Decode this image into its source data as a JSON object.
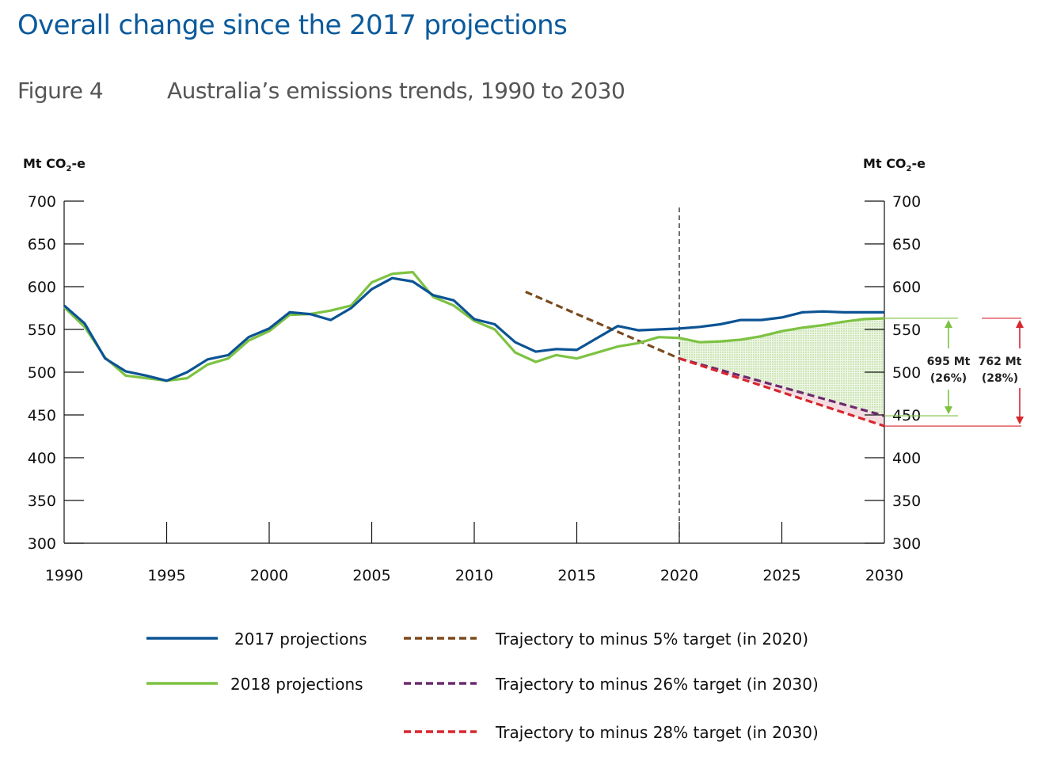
{
  "header": {
    "title": "Overall change since the 2017 projections",
    "figure_label": "Figure 4",
    "figure_title": "Australia’s emissions trends, 1990 to 2030"
  },
  "chart_data": {
    "type": "line",
    "ylabel_left": "Mt CO2-e",
    "ylabel_right": "Mt CO2-e",
    "xlim": [
      1990,
      2030
    ],
    "ylim": [
      300,
      700
    ],
    "x_ticks": [
      1990,
      1995,
      2000,
      2005,
      2010,
      2015,
      2020,
      2025,
      2030
    ],
    "y_ticks": [
      300,
      350,
      400,
      450,
      500,
      550,
      600,
      650,
      700
    ],
    "projection_start_marker_year": 2020,
    "series": [
      {
        "name": "2017 projections",
        "style": "solid",
        "color": "#0b5394",
        "x": [
          1990,
          1991,
          1992,
          1993,
          1994,
          1995,
          1996,
          1997,
          1998,
          1999,
          2000,
          2001,
          2002,
          2003,
          2004,
          2005,
          2006,
          2007,
          2008,
          2009,
          2010,
          2011,
          2012,
          2013,
          2014,
          2015,
          2016,
          2017,
          2018,
          2019,
          2020,
          2021,
          2022,
          2023,
          2024,
          2025,
          2026,
          2027,
          2028,
          2029,
          2030
        ],
        "y": [
          578,
          557,
          516,
          501,
          496,
          490,
          500,
          515,
          520,
          541,
          551,
          570,
          568,
          561,
          575,
          597,
          610,
          606,
          590,
          584,
          562,
          556,
          535,
          524,
          527,
          526,
          540,
          554,
          549,
          550,
          551,
          553,
          556,
          561,
          561,
          564,
          570,
          571,
          570,
          570,
          570
        ]
      },
      {
        "name": "2018 projections",
        "style": "solid",
        "color": "#7dc242",
        "x": [
          1990,
          1991,
          1992,
          1993,
          1994,
          1995,
          1996,
          1997,
          1998,
          1999,
          2000,
          2001,
          2002,
          2003,
          2004,
          2005,
          2006,
          2007,
          2008,
          2009,
          2010,
          2011,
          2012,
          2013,
          2014,
          2015,
          2016,
          2017,
          2018,
          2019,
          2020,
          2021,
          2022,
          2023,
          2024,
          2025,
          2026,
          2027,
          2028,
          2029,
          2030
        ],
        "y": [
          576,
          553,
          517,
          496,
          493,
          490,
          493,
          509,
          516,
          537,
          548,
          567,
          568,
          572,
          578,
          605,
          615,
          617,
          588,
          578,
          560,
          550,
          523,
          512,
          520,
          516,
          523,
          530,
          534,
          541,
          540,
          535,
          536,
          538,
          542,
          548,
          552,
          555,
          559,
          562,
          563
        ]
      },
      {
        "name": "Trajectory to minus 5% target (in 2020)",
        "style": "dashed",
        "color": "#7a4a1e",
        "x": [
          2012.5,
          2020
        ],
        "y": [
          594,
          516
        ]
      },
      {
        "name": "Trajectory to minus 26% target (in 2030)",
        "style": "dashed",
        "color": "#6b2a6e",
        "x": [
          2020,
          2030
        ],
        "y": [
          516,
          449
        ]
      },
      {
        "name": "Trajectory to minus 28% target (in 2030)",
        "style": "dashed",
        "color": "#d7262e",
        "x": [
          2020,
          2030
        ],
        "y": [
          516,
          437
        ]
      }
    ],
    "annotations": [
      {
        "label_line1": "695 Mt",
        "label_line2": "(26%)",
        "from": 563,
        "to": 449,
        "color": "#7dc242"
      },
      {
        "label_line1": "762 Mt",
        "label_line2": "(28%)",
        "from": 563,
        "to": 437,
        "color": "#d7262e"
      }
    ],
    "legend": [
      {
        "label": "2017 projections",
        "color": "#0b5394",
        "style": "solid"
      },
      {
        "label": "2018 projections",
        "color": "#7dc242",
        "style": "solid"
      },
      {
        "label": "Trajectory to minus 5% target (in 2020)",
        "color": "#7a4a1e",
        "style": "dashed"
      },
      {
        "label": "Trajectory to minus 26% target (in 2030)",
        "color": "#6b2a6e",
        "style": "dashed"
      },
      {
        "label": "Trajectory to minus 28% target (in 2030)",
        "color": "#d7262e",
        "style": "dashed"
      }
    ]
  }
}
